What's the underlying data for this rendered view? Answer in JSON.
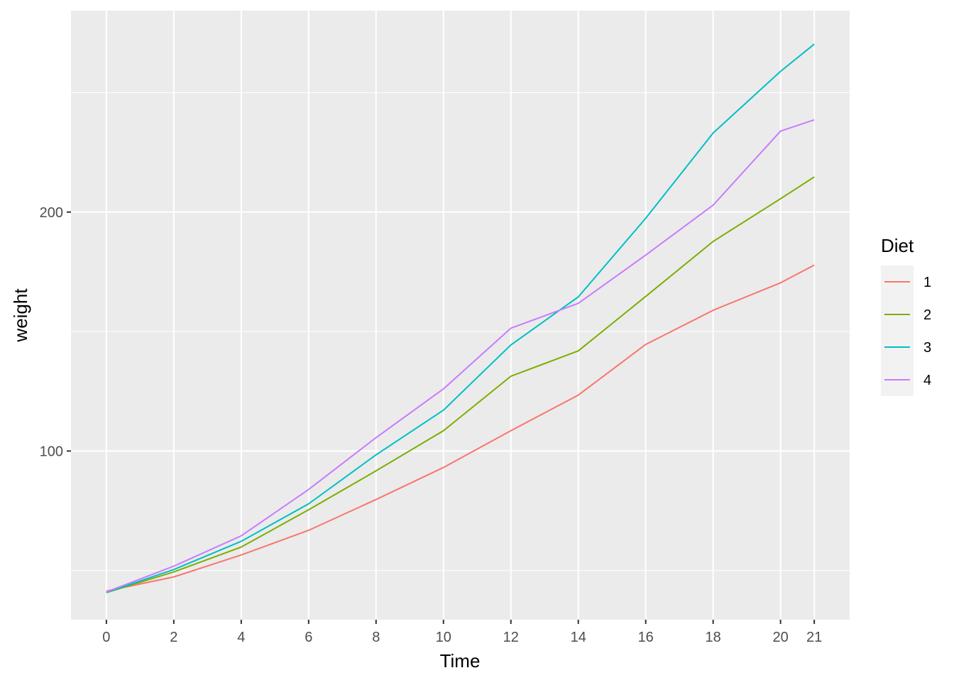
{
  "chart_data": {
    "type": "line",
    "title": "",
    "xlabel": "Time",
    "ylabel": "weight",
    "x": [
      0,
      2,
      4,
      6,
      8,
      10,
      12,
      14,
      16,
      18,
      20,
      21
    ],
    "x_tick_labels": [
      "0",
      "2",
      "4",
      "6",
      "8",
      "10",
      "12",
      "14",
      "16",
      "18",
      "20",
      "21"
    ],
    "y_ticks": [
      100,
      200
    ],
    "y_tick_labels": [
      "100",
      "200"
    ],
    "y_minor_ticks": [
      50,
      150,
      250
    ],
    "ylim": [
      29.4,
      284.3
    ],
    "grid": true,
    "legend": {
      "title": "Diet",
      "placement": "right"
    },
    "series": [
      {
        "name": "1",
        "color": "#F8766D",
        "values": [
          41.4,
          47.3,
          56.5,
          66.8,
          79.7,
          93.1,
          108.5,
          123.4,
          144.6,
          158.9,
          170.4,
          177.8
        ]
      },
      {
        "name": "2",
        "color": "#7CAE00",
        "values": [
          40.7,
          49.4,
          59.8,
          75.4,
          91.7,
          108.5,
          131.3,
          141.9,
          164.7,
          187.7,
          205.6,
          214.7
        ]
      },
      {
        "name": "3",
        "color": "#00BFC4",
        "values": [
          40.8,
          50.4,
          62.2,
          77.9,
          98.4,
          117.1,
          144.4,
          164.5,
          197.4,
          233.1,
          258.9,
          270.3
        ]
      },
      {
        "name": "4",
        "color": "#C77CFF",
        "values": [
          41.0,
          51.8,
          64.5,
          83.9,
          105.6,
          126.0,
          151.4,
          161.8,
          182.0,
          202.9,
          233.9,
          238.6
        ]
      }
    ]
  }
}
